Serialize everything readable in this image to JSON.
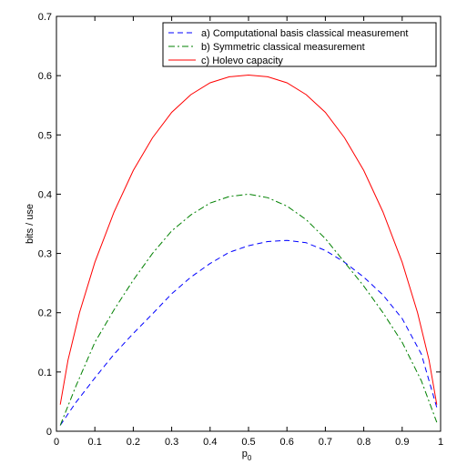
{
  "chart_data": {
    "type": "line",
    "xlabel": "p",
    "xlabel_sub": "0",
    "ylabel": "bits / use",
    "xlim": [
      0,
      1
    ],
    "ylim": [
      0,
      0.7
    ],
    "x_ticks": [
      0,
      0.1,
      0.2,
      0.3,
      0.4,
      0.5,
      0.6,
      0.7,
      0.8,
      0.9,
      1
    ],
    "x_tick_labels": [
      "0",
      "0.1",
      "0.2",
      "0.3",
      "0.4",
      "0.5",
      "0.6",
      "0.7",
      "0.8",
      "0.9",
      "1"
    ],
    "y_ticks": [
      0,
      0.1,
      0.2,
      0.3,
      0.4,
      0.5,
      0.6,
      0.7
    ],
    "y_tick_labels": [
      "0",
      "0.1",
      "0.2",
      "0.3",
      "0.4",
      "0.5",
      "0.6",
      "0.7"
    ],
    "grid": false,
    "legend_position": "top-right",
    "series": [
      {
        "name": "a) Computational basis classical measurement",
        "color": "#0000ff",
        "style": "dashed",
        "x": [
          0.01,
          0.05,
          0.1,
          0.15,
          0.2,
          0.25,
          0.3,
          0.35,
          0.4,
          0.45,
          0.5,
          0.55,
          0.6,
          0.65,
          0.7,
          0.75,
          0.8,
          0.85,
          0.9,
          0.95,
          0.99
        ],
        "y": [
          0.01,
          0.048,
          0.09,
          0.13,
          0.165,
          0.198,
          0.232,
          0.26,
          0.283,
          0.302,
          0.313,
          0.32,
          0.322,
          0.318,
          0.305,
          0.285,
          0.26,
          0.23,
          0.19,
          0.13,
          0.04
        ]
      },
      {
        "name": "b) Symmetric classical measurement",
        "color": "#008000",
        "style": "dashdot",
        "x": [
          0.01,
          0.05,
          0.1,
          0.15,
          0.2,
          0.25,
          0.3,
          0.35,
          0.4,
          0.45,
          0.5,
          0.55,
          0.6,
          0.65,
          0.7,
          0.75,
          0.8,
          0.85,
          0.9,
          0.95,
          0.99
        ],
        "y": [
          0.01,
          0.075,
          0.15,
          0.205,
          0.255,
          0.3,
          0.338,
          0.365,
          0.385,
          0.396,
          0.4,
          0.394,
          0.38,
          0.357,
          0.325,
          0.285,
          0.245,
          0.2,
          0.15,
          0.085,
          0.015
        ]
      },
      {
        "name": "c) Holevo capacity",
        "color": "#ff0000",
        "style": "solid",
        "x": [
          0.01,
          0.03,
          0.06,
          0.1,
          0.15,
          0.2,
          0.25,
          0.3,
          0.35,
          0.4,
          0.45,
          0.5,
          0.55,
          0.6,
          0.65,
          0.7,
          0.75,
          0.8,
          0.85,
          0.9,
          0.94,
          0.97,
          0.99
        ],
        "y": [
          0.045,
          0.12,
          0.2,
          0.285,
          0.37,
          0.44,
          0.495,
          0.538,
          0.568,
          0.588,
          0.598,
          0.601,
          0.598,
          0.588,
          0.568,
          0.538,
          0.495,
          0.44,
          0.37,
          0.285,
          0.2,
          0.12,
          0.045
        ]
      }
    ]
  }
}
